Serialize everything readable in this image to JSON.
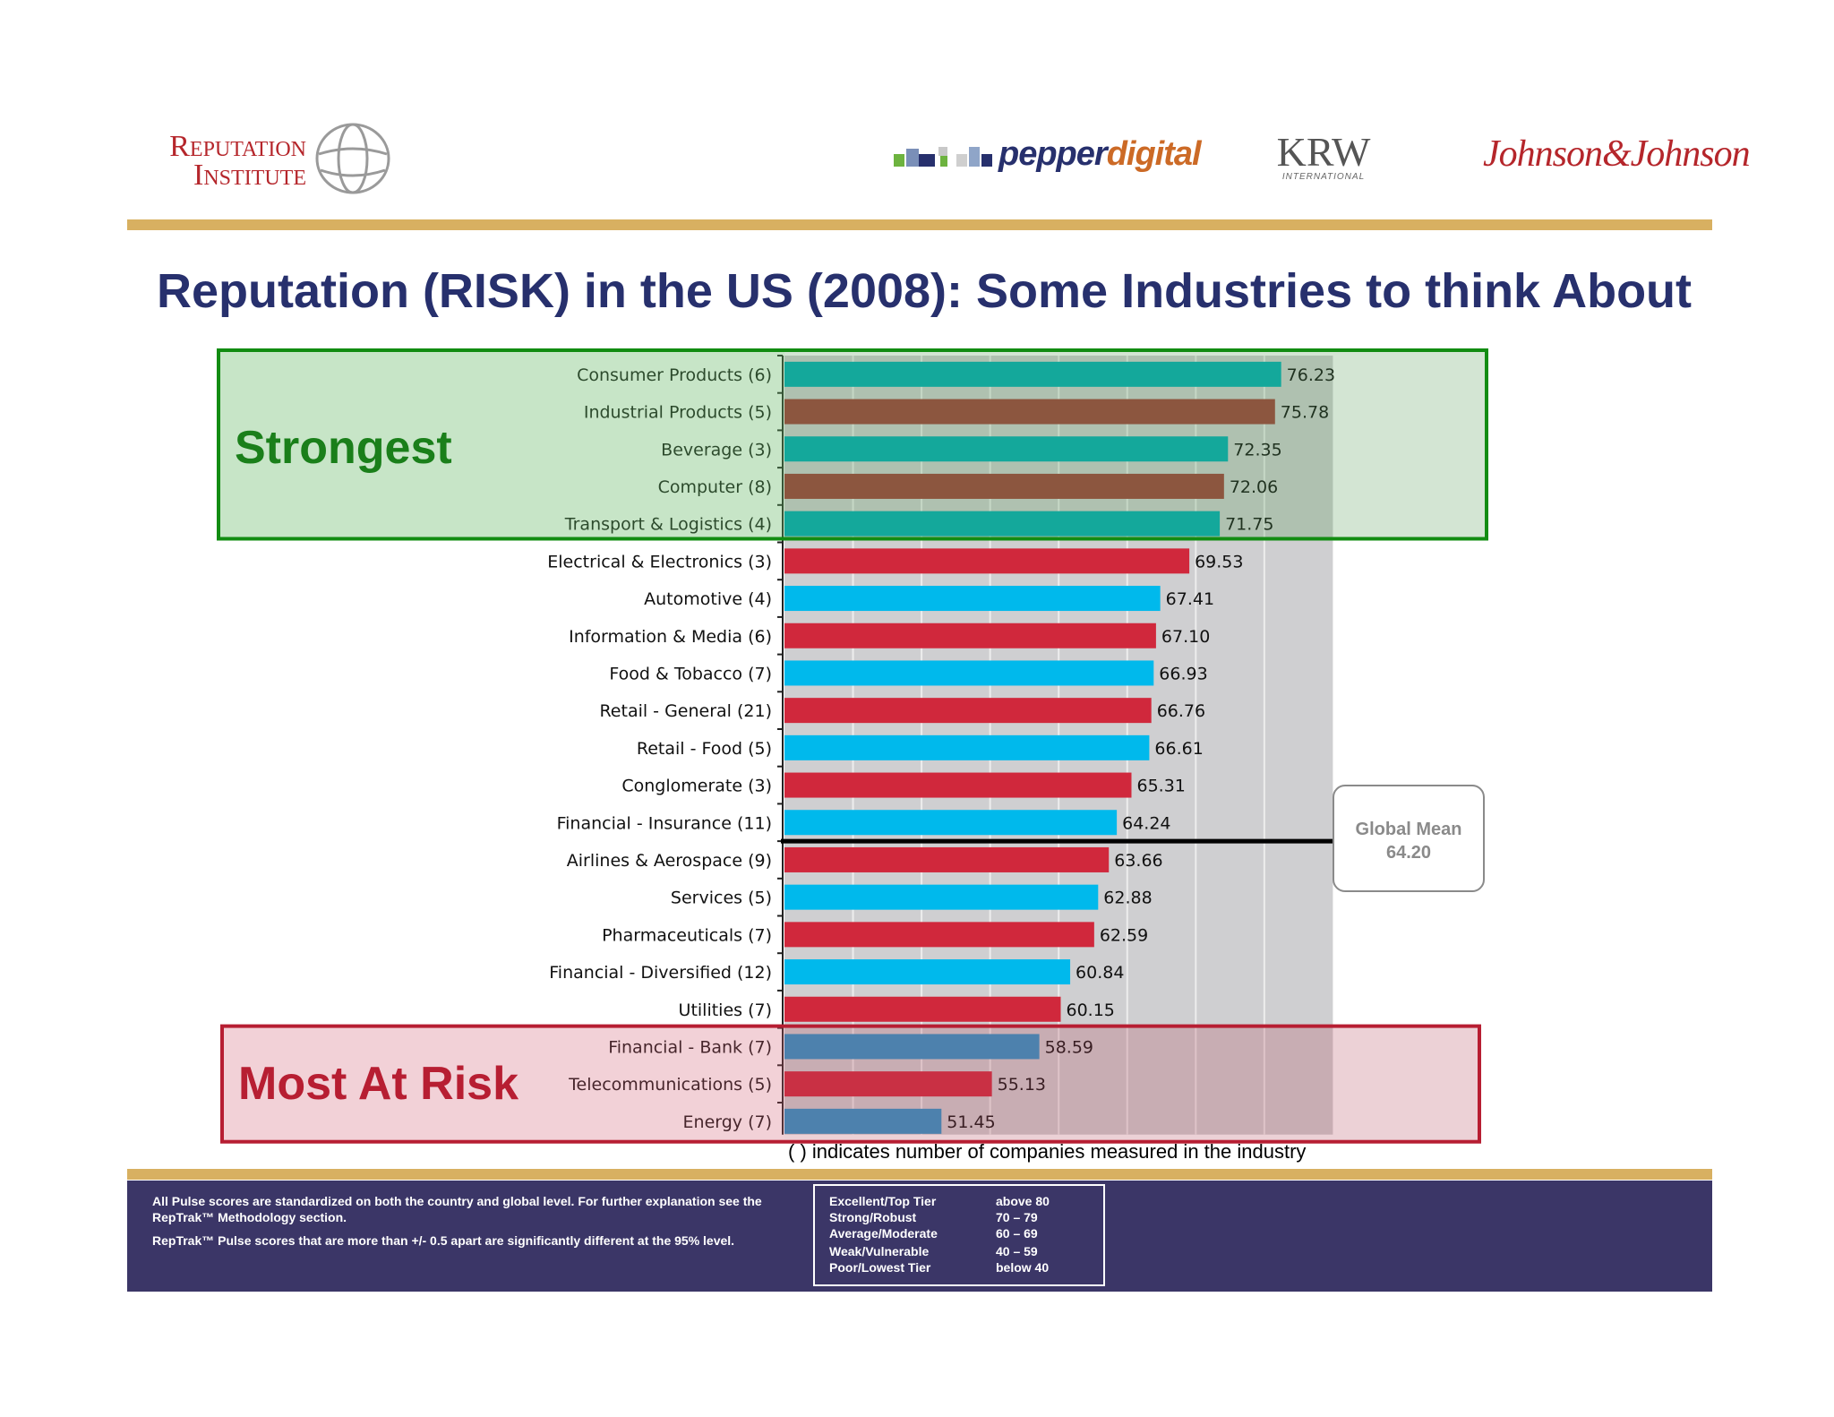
{
  "header": {
    "logo_ri_line1": "Reputation",
    "logo_ri_line2": "Institute",
    "logo_pd_part1": "pepper",
    "logo_pd_part2": "digital",
    "logo_krw": "KRW",
    "logo_krw_sub": "INTERNATIONAL",
    "logo_jj": "Johnson&Johnson"
  },
  "title": "Reputation (RISK) in the US (2008): Some Industries to think About",
  "annotations": {
    "strongest": "Strongest",
    "most_at_risk": "Most At Risk",
    "global_mean_label": "Global Mean",
    "global_mean_value": "64.20",
    "footnote": "( ) indicates number of companies measured in the industry"
  },
  "footer": {
    "note1": "All Pulse scores are standardized on both the country and global level.  For further explanation see the RepTrak™ Methodology section.",
    "note2": "RepTrak™ Pulse scores that are more than +/- 0.5 apart are significantly different at the 95% level.",
    "tiers": [
      {
        "name": "Excellent/Top Tier",
        "range": "above 80"
      },
      {
        "name": "Strong/Robust",
        "range": "70 – 79"
      },
      {
        "name": "Average/Moderate",
        "range": "60 – 69"
      },
      {
        "name": "Weak/Vulnerable",
        "range": "40 – 59"
      },
      {
        "name": "Poor/Lowest Tier",
        "range": "below 40"
      }
    ]
  },
  "colors": {
    "teal": "#00aeb5",
    "brick": "#a1413a",
    "red": "#d0283c",
    "cyan": "#00b9ec",
    "steel": "#2b95c9",
    "green_box": "#128c12",
    "red_box": "#b71e32"
  },
  "chart_data": {
    "type": "bar",
    "orientation": "horizontal",
    "title": "Reputation (RISK) in the US (2008): Some Industries to think About",
    "xlim": [
      40,
      80
    ],
    "global_mean": 64.2,
    "categories": [
      "Consumer Products (6)",
      "Industrial Products (5)",
      "Beverage (3)",
      "Computer (8)",
      "Transport & Logistics (4)",
      "Electrical & Electronics (3)",
      "Automotive (4)",
      "Information & Media (6)",
      "Food & Tobacco (7)",
      "Retail - General (21)",
      "Retail - Food (5)",
      "Conglomerate (3)",
      "Financial - Insurance (11)",
      "Airlines & Aerospace (9)",
      "Services (5)",
      "Pharmaceuticals (7)",
      "Financial - Diversified (12)",
      "Utilities (7)",
      "Financial - Bank (7)",
      "Telecommunications (5)",
      "Energy (7)"
    ],
    "values": [
      76.23,
      75.78,
      72.35,
      72.06,
      71.75,
      69.53,
      67.41,
      67.1,
      66.93,
      66.76,
      66.61,
      65.31,
      64.24,
      63.66,
      62.88,
      62.59,
      60.84,
      60.15,
      58.59,
      55.13,
      51.45
    ],
    "value_labels": [
      "76.23",
      "75.78",
      "72.35",
      "72.06",
      "71.75",
      "69.53",
      "67.41",
      "67.10",
      "66.93",
      "66.76",
      "66.61",
      "65.31",
      "64.24",
      "63.66",
      "62.88",
      "62.59",
      "60.84",
      "60.15",
      "58.59",
      "55.13",
      "51.45"
    ],
    "bar_colors": [
      "teal",
      "brick",
      "teal",
      "brick",
      "teal",
      "red",
      "cyan",
      "red",
      "cyan",
      "red",
      "cyan",
      "red",
      "cyan",
      "red",
      "cyan",
      "red",
      "cyan",
      "red",
      "steel",
      "red",
      "steel"
    ],
    "groups": [
      {
        "name": "Strongest",
        "from": 0,
        "to": 4
      },
      {
        "name": "Most At Risk",
        "from": 18,
        "to": 20
      }
    ]
  }
}
